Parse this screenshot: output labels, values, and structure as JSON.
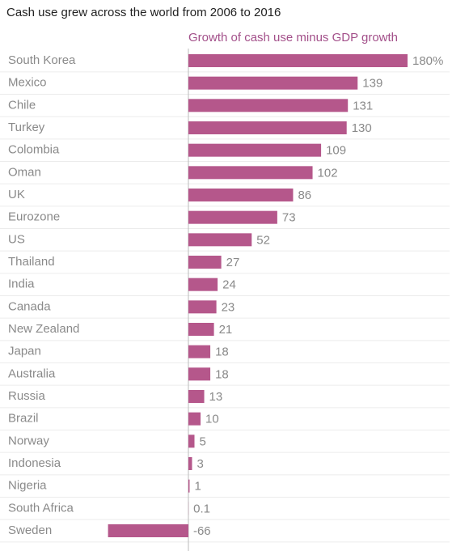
{
  "chart_data": {
    "type": "bar",
    "orientation": "horizontal",
    "title": "Cash use grew across the world from 2006 to 2016",
    "series_label": "Growth of cash use minus GDP growth",
    "color": "#b5578b",
    "categories": [
      "South Korea",
      "Mexico",
      "Chile",
      "Turkey",
      "Colombia",
      "Oman",
      "UK",
      "Eurozone",
      "US",
      "Thailand",
      "India",
      "Canada",
      "New Zealand",
      "Japan",
      "Australia",
      "Russia",
      "Brazil",
      "Norway",
      "Indonesia",
      "Nigeria",
      "South Africa",
      "Sweden"
    ],
    "values": [
      180,
      139,
      131,
      130,
      109,
      102,
      86,
      73,
      52,
      27,
      24,
      23,
      21,
      18,
      18,
      13,
      10,
      5,
      3,
      1,
      0.1,
      -66
    ],
    "value_labels": [
      "180%",
      "139",
      "131",
      "130",
      "109",
      "102",
      "86",
      "73",
      "52",
      "27",
      "24",
      "23",
      "21",
      "18",
      "18",
      "13",
      "10",
      "5",
      "3",
      "1",
      "0.1",
      "-66"
    ]
  }
}
